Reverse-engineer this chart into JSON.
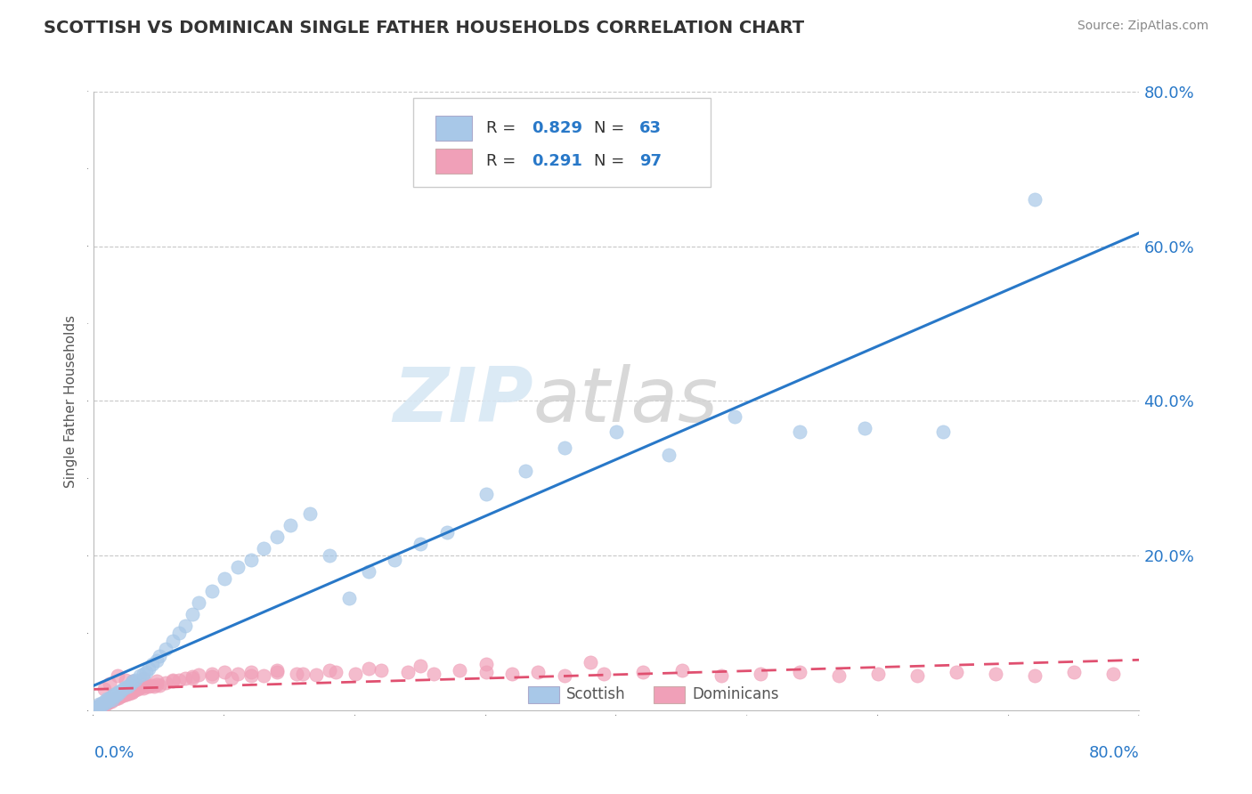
{
  "title": "SCOTTISH VS DOMINICAN SINGLE FATHER HOUSEHOLDS CORRELATION CHART",
  "source": "Source: ZipAtlas.com",
  "ylabel": "Single Father Households",
  "watermark_zip": "ZIP",
  "watermark_atlas": "atlas",
  "xlim": [
    0.0,
    0.8
  ],
  "ylim": [
    0.0,
    0.8
  ],
  "scottish_R": 0.829,
  "scottish_N": 63,
  "dominican_R": 0.291,
  "dominican_N": 97,
  "scottish_color": "#a8c8e8",
  "dominican_color": "#f0a0b8",
  "scottish_line_color": "#2878c8",
  "dominican_line_color": "#e05070",
  "background_color": "#ffffff",
  "grid_color": "#c8c8c8",
  "title_color": "#333333",
  "scottish_x": [
    0.001,
    0.002,
    0.003,
    0.004,
    0.005,
    0.006,
    0.007,
    0.008,
    0.009,
    0.01,
    0.011,
    0.012,
    0.013,
    0.014,
    0.015,
    0.016,
    0.017,
    0.018,
    0.019,
    0.02,
    0.022,
    0.024,
    0.026,
    0.028,
    0.03,
    0.032,
    0.035,
    0.038,
    0.04,
    0.042,
    0.045,
    0.048,
    0.05,
    0.055,
    0.06,
    0.065,
    0.07,
    0.075,
    0.08,
    0.09,
    0.1,
    0.11,
    0.12,
    0.13,
    0.14,
    0.15,
    0.165,
    0.18,
    0.195,
    0.21,
    0.23,
    0.25,
    0.27,
    0.3,
    0.33,
    0.36,
    0.4,
    0.44,
    0.49,
    0.54,
    0.59,
    0.65,
    0.72
  ],
  "scottish_y": [
    0.003,
    0.005,
    0.004,
    0.008,
    0.006,
    0.01,
    0.009,
    0.012,
    0.011,
    0.015,
    0.013,
    0.016,
    0.018,
    0.014,
    0.02,
    0.019,
    0.022,
    0.021,
    0.025,
    0.024,
    0.028,
    0.03,
    0.032,
    0.035,
    0.038,
    0.04,
    0.045,
    0.048,
    0.05,
    0.055,
    0.06,
    0.065,
    0.07,
    0.08,
    0.09,
    0.1,
    0.11,
    0.125,
    0.14,
    0.155,
    0.17,
    0.185,
    0.195,
    0.21,
    0.225,
    0.24,
    0.255,
    0.2,
    0.145,
    0.18,
    0.195,
    0.215,
    0.23,
    0.28,
    0.31,
    0.34,
    0.36,
    0.33,
    0.38,
    0.36,
    0.365,
    0.36,
    0.66
  ],
  "dominican_x": [
    0.001,
    0.002,
    0.003,
    0.004,
    0.005,
    0.006,
    0.007,
    0.008,
    0.009,
    0.01,
    0.011,
    0.012,
    0.013,
    0.014,
    0.015,
    0.016,
    0.017,
    0.018,
    0.019,
    0.02,
    0.021,
    0.022,
    0.023,
    0.024,
    0.025,
    0.026,
    0.027,
    0.028,
    0.029,
    0.03,
    0.032,
    0.034,
    0.036,
    0.038,
    0.04,
    0.042,
    0.044,
    0.046,
    0.048,
    0.05,
    0.055,
    0.06,
    0.065,
    0.07,
    0.075,
    0.08,
    0.09,
    0.1,
    0.11,
    0.12,
    0.13,
    0.14,
    0.155,
    0.17,
    0.185,
    0.2,
    0.22,
    0.24,
    0.26,
    0.28,
    0.3,
    0.32,
    0.34,
    0.36,
    0.39,
    0.42,
    0.45,
    0.48,
    0.51,
    0.54,
    0.57,
    0.6,
    0.63,
    0.66,
    0.69,
    0.72,
    0.75,
    0.78,
    0.008,
    0.012,
    0.018,
    0.024,
    0.03,
    0.038,
    0.048,
    0.06,
    0.075,
    0.09,
    0.105,
    0.12,
    0.14,
    0.16,
    0.18,
    0.21,
    0.25,
    0.3,
    0.38
  ],
  "dominican_y": [
    0.002,
    0.004,
    0.003,
    0.006,
    0.005,
    0.008,
    0.007,
    0.01,
    0.009,
    0.012,
    0.011,
    0.013,
    0.012,
    0.015,
    0.014,
    0.016,
    0.015,
    0.018,
    0.017,
    0.02,
    0.019,
    0.021,
    0.02,
    0.022,
    0.021,
    0.023,
    0.022,
    0.024,
    0.023,
    0.025,
    0.027,
    0.028,
    0.03,
    0.029,
    0.032,
    0.031,
    0.033,
    0.032,
    0.034,
    0.033,
    0.036,
    0.038,
    0.04,
    0.042,
    0.044,
    0.046,
    0.048,
    0.05,
    0.048,
    0.05,
    0.045,
    0.052,
    0.048,
    0.046,
    0.05,
    0.048,
    0.052,
    0.05,
    0.048,
    0.052,
    0.05,
    0.048,
    0.05,
    0.045,
    0.048,
    0.05,
    0.052,
    0.045,
    0.048,
    0.05,
    0.045,
    0.048,
    0.045,
    0.05,
    0.048,
    0.045,
    0.05,
    0.048,
    0.028,
    0.035,
    0.045,
    0.04,
    0.038,
    0.042,
    0.038,
    0.04,
    0.042,
    0.044,
    0.042,
    0.045,
    0.05,
    0.048,
    0.052,
    0.055,
    0.058,
    0.06,
    0.062
  ]
}
